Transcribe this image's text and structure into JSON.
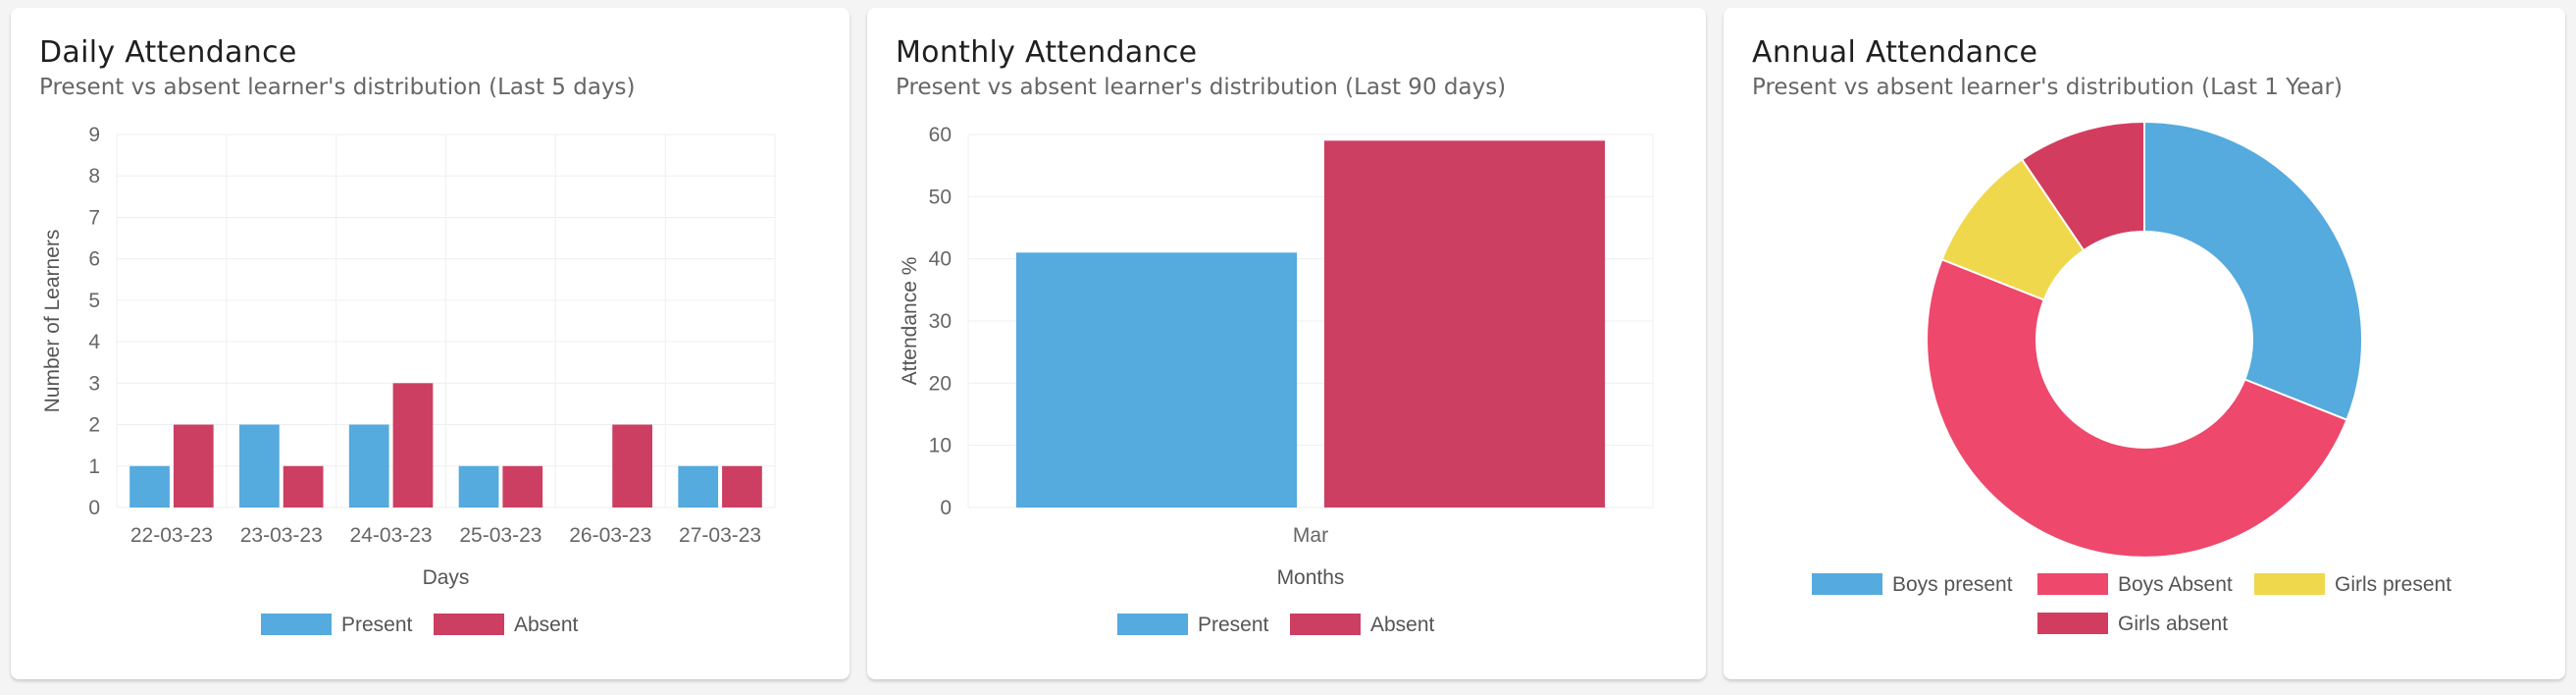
{
  "colors": {
    "present": "#55aade",
    "absent": "#cc3f62",
    "boys_present": "#55aade",
    "boys_absent": "#ee486c",
    "girls_present": "#f0d84c",
    "girls_absent": "#d23d5f"
  },
  "chart_data": [
    {
      "type": "bar",
      "title": "Daily Attendance",
      "subtitle": "Present vs absent learner's distribution (Last 5 days)",
      "xlabel": "Days",
      "ylabel": "Number of Learners",
      "ylim": [
        0,
        9
      ],
      "yticks": [
        "0",
        "1",
        "2",
        "3",
        "4",
        "5",
        "6",
        "7",
        "8",
        "9"
      ],
      "categories": [
        "22-03-23",
        "23-03-23",
        "24-03-23",
        "25-03-23",
        "26-03-23",
        "27-03-23"
      ],
      "series": [
        {
          "name": "Present",
          "values": [
            1,
            2,
            2,
            1,
            0,
            1
          ]
        },
        {
          "name": "Absent",
          "values": [
            2,
            1,
            3,
            1,
            2,
            1
          ]
        }
      ],
      "legend": "bottom",
      "grid": true
    },
    {
      "type": "bar",
      "title": "Monthly Attendance",
      "subtitle": "Present vs absent learner's distribution (Last 90 days)",
      "xlabel": "Months",
      "ylabel": "Attendance %",
      "ylim": [
        0,
        60
      ],
      "yticks": [
        "0",
        "10",
        "20",
        "30",
        "40",
        "50",
        "60"
      ],
      "categories": [
        "Mar"
      ],
      "series": [
        {
          "name": "Present",
          "values": [
            41
          ]
        },
        {
          "name": "Absent",
          "values": [
            59
          ]
        }
      ],
      "legend": "bottom",
      "grid": true
    },
    {
      "type": "pie",
      "title": "Annual Attendance",
      "subtitle": "Present vs absent learner's distribution (Last 1 Year)",
      "labels": [
        "Boys present",
        "Boys Absent",
        "Girls present",
        "Girls absent"
      ],
      "values": [
        31,
        50,
        9.5,
        9.5
      ],
      "donut": true,
      "legend": "bottom"
    }
  ]
}
